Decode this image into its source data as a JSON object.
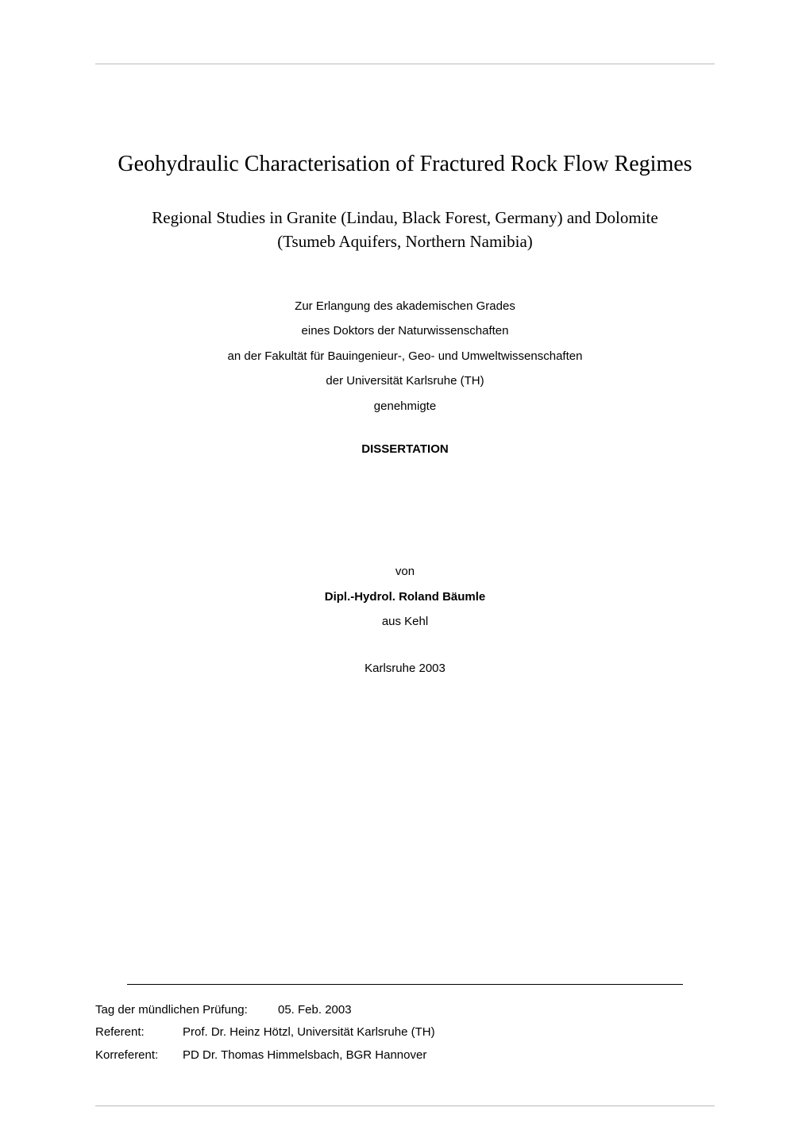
{
  "colors": {
    "background": "#ffffff",
    "text": "#000000",
    "double_rule": "#bbbbbb",
    "single_rule": "#000000"
  },
  "typography": {
    "title_font": "Times New Roman",
    "body_font": "Arial",
    "title_size_pt": 21,
    "subtitle_size_pt": 16,
    "body_size_pt": 11
  },
  "title": "Geohydraulic Characterisation of Fractured Rock Flow Regimes",
  "subtitle": {
    "line1": "Regional Studies in Granite (Lindau, Black Forest, Germany) and Dolomite",
    "line2": "(Tsumeb Aquifers, Northern Namibia)"
  },
  "front_matter": {
    "l1": "Zur Erlangung des akademischen Grades",
    "l2": "eines Doktors der Naturwissenschaften",
    "l3": "an der Fakultät für Bauingenieur-, Geo- und Umweltwissenschaften",
    "l4": "der Universität Karlsruhe (TH)",
    "l5": "genehmigte"
  },
  "dissertation_label": "DISSERTATION",
  "author": {
    "by_label": "von",
    "name": "Dipl.-Hydrol. Roland Bäumle",
    "origin": "aus Kehl"
  },
  "pub_place_year": "Karlsruhe 2003",
  "defense": {
    "label": "Tag der mündlichen Prüfung:",
    "value": "05. Feb. 2003"
  },
  "referee": {
    "label": "Referent:",
    "value": "Prof. Dr. Heinz Hötzl, Universität Karlsruhe (TH)"
  },
  "coreferee": {
    "label": "Korreferent:",
    "value": "PD Dr. Thomas Himmelsbach, BGR Hannover"
  }
}
